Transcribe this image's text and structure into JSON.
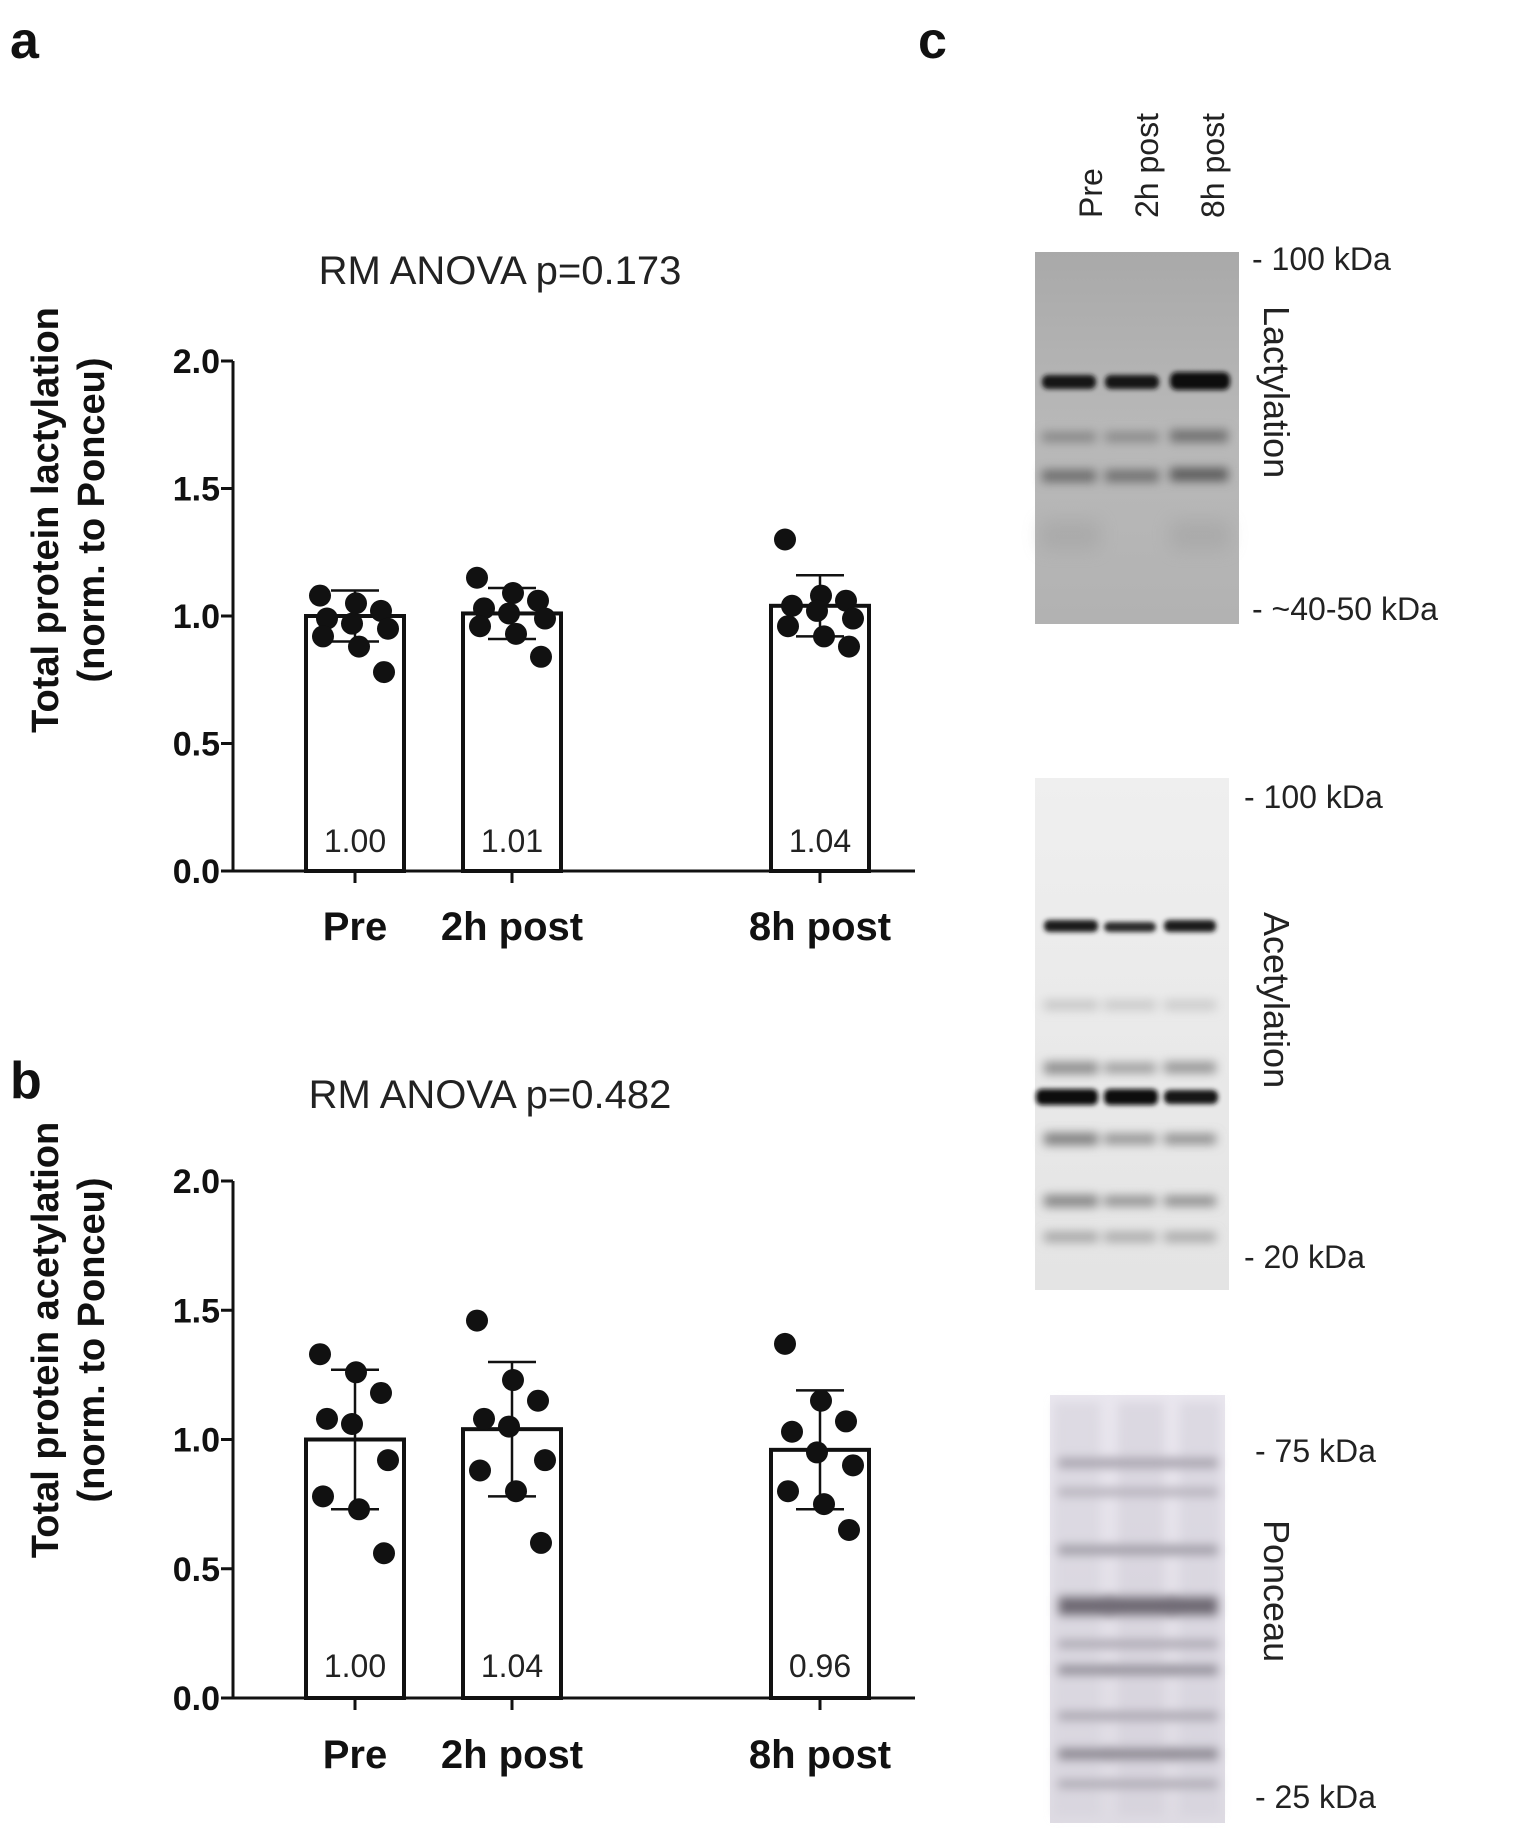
{
  "panel_letters": {
    "a": "a",
    "b": "b",
    "c": "c"
  },
  "chart_data": [
    {
      "type": "bar",
      "panel": "a",
      "title": "RM ANOVA p=0.173",
      "ylabel_line1": "Total protein lactylation",
      "ylabel_line2": "(norm. to Ponceu)",
      "xlabel": "",
      "categories": [
        "Pre",
        "2h post",
        "8h post"
      ],
      "yticks": [
        "0.0",
        "0.5",
        "1.0",
        "1.5",
        "2.0"
      ],
      "ylim": [
        0,
        2.0
      ],
      "values": [
        1.0,
        1.01,
        1.04
      ],
      "value_labels": [
        "1.00",
        "1.01",
        "1.04"
      ],
      "sd": [
        0.1,
        0.1,
        0.12
      ],
      "points": [
        [
          1.08,
          1.05,
          1.02,
          0.99,
          0.97,
          0.95,
          0.92,
          0.88,
          0.78
        ],
        [
          1.15,
          1.09,
          1.06,
          1.03,
          1.01,
          0.99,
          0.96,
          0.93,
          0.84
        ],
        [
          1.3,
          1.08,
          1.06,
          1.04,
          1.02,
          0.99,
          0.96,
          0.92,
          0.88
        ]
      ],
      "grid": false,
      "legend": "none"
    },
    {
      "type": "bar",
      "panel": "b",
      "title": "RM ANOVA p=0.482",
      "ylabel_line1": "Total protein acetylation",
      "ylabel_line2": "(norm. to Ponceu)",
      "xlabel": "",
      "categories": [
        "Pre",
        "2h post",
        "8h post"
      ],
      "yticks": [
        "0.0",
        "0.5",
        "1.0",
        "1.5",
        "2.0"
      ],
      "ylim": [
        0,
        2.0
      ],
      "values": [
        1.0,
        1.04,
        0.96
      ],
      "value_labels": [
        "1.00",
        "1.04",
        "0.96"
      ],
      "sd": [
        0.27,
        0.26,
        0.23
      ],
      "points": [
        [
          1.33,
          1.26,
          1.18,
          1.08,
          1.06,
          0.92,
          0.78,
          0.73,
          0.56
        ],
        [
          1.46,
          1.23,
          1.15,
          1.08,
          1.05,
          0.92,
          0.88,
          0.8,
          0.6
        ],
        [
          1.37,
          1.15,
          1.07,
          1.03,
          0.95,
          0.9,
          0.8,
          0.75,
          0.65
        ]
      ],
      "grid": false,
      "legend": "none"
    }
  ],
  "blots": {
    "lanes": [
      "Pre",
      "2h post",
      "8h post"
    ],
    "lactylation": {
      "name": "Lactylation",
      "marker_top": "- 100 kDa",
      "marker_bottom": "- ~40-50 kDa"
    },
    "acetylation": {
      "name": "Acetylation",
      "marker_top": "- 100 kDa",
      "marker_bottom": "- 20 kDa"
    },
    "ponceau": {
      "name": "Ponceau",
      "marker_top": "- 75 kDa",
      "marker_bottom": "- 25 kDa"
    }
  }
}
